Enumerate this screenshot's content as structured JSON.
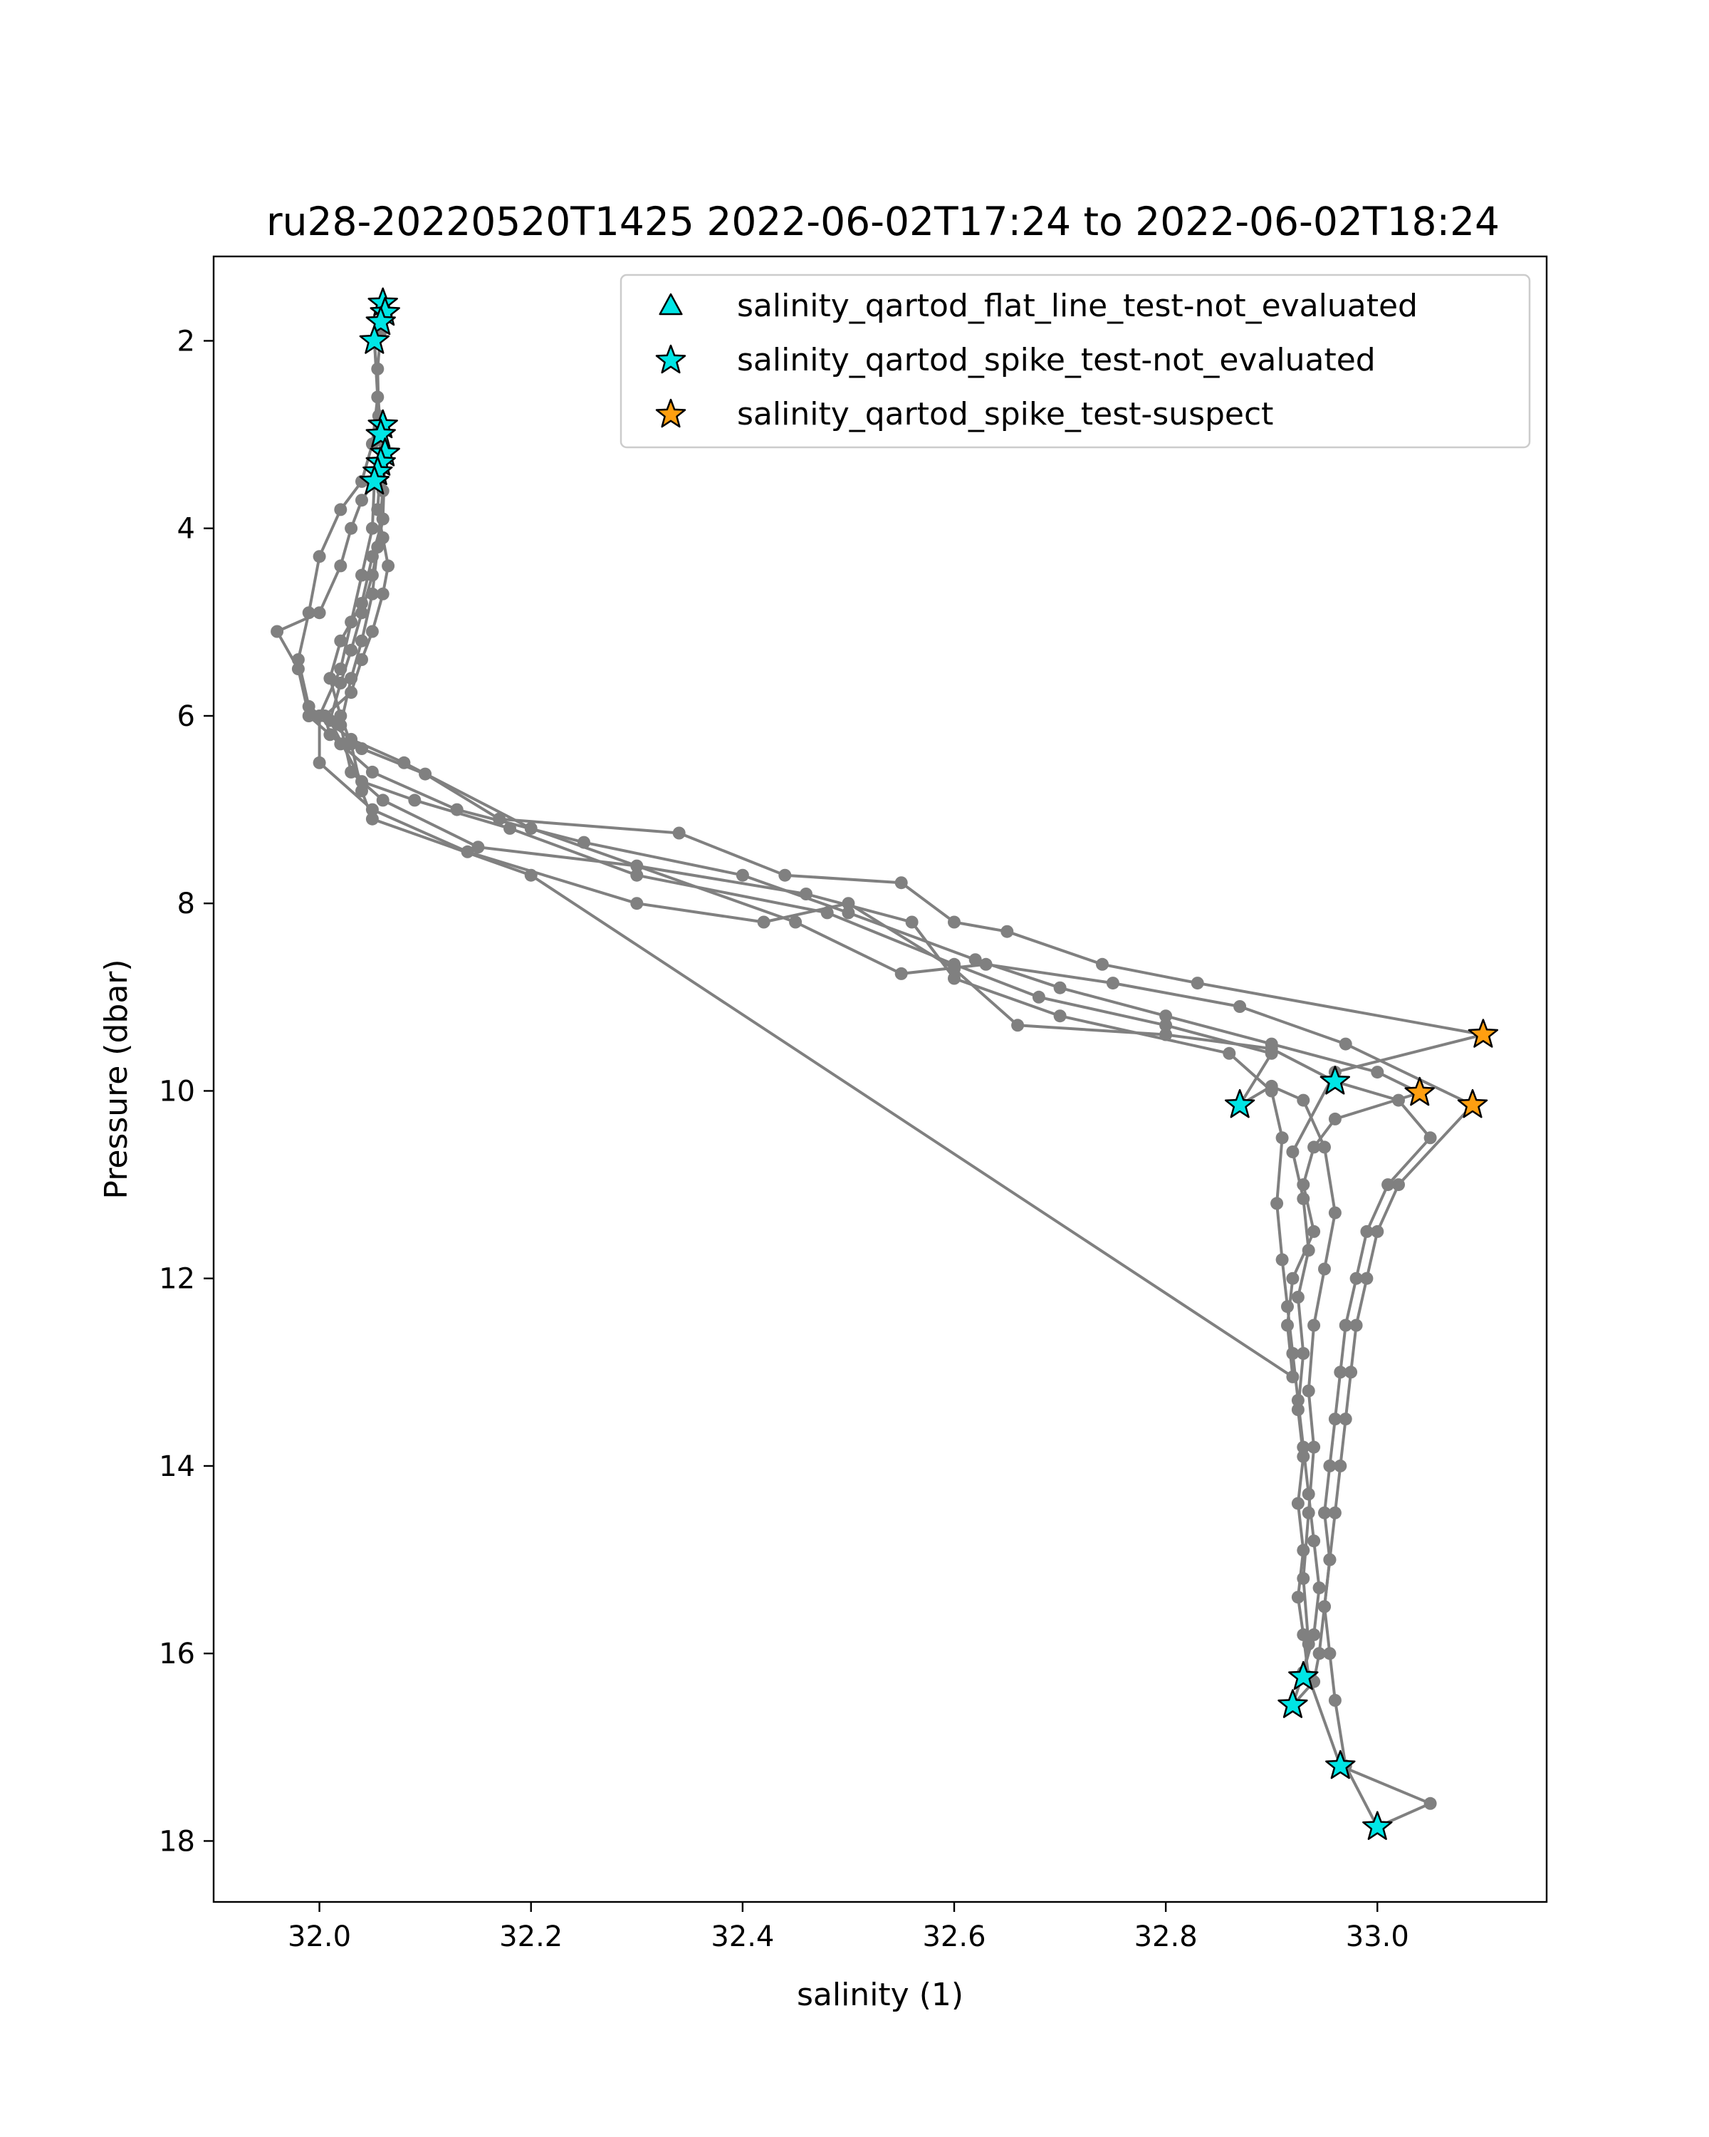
{
  "chart_data": {
    "type": "scatter",
    "title": "ru28-20220520T1425 2022-06-02T17:24 to 2022-06-02T18:24",
    "xlabel": "salinity (1)",
    "ylabel": "Pressure (dbar)",
    "xlim": [
      31.9,
      33.16
    ],
    "ylim": [
      18.65,
      1.1
    ],
    "y_inverted": true,
    "grid": false,
    "xticks": [
      "32.0",
      "32.2",
      "32.4",
      "32.6",
      "32.8",
      "33.0"
    ],
    "yticks": [
      "2",
      "4",
      "6",
      "8",
      "10",
      "12",
      "14",
      "16",
      "18"
    ],
    "legend_position": "upper right",
    "colors": {
      "line": "#808080",
      "not_evaluated": "#00e5e5",
      "suspect": "#ff9f10"
    },
    "series": [
      {
        "name": "",
        "marker": "circle",
        "color": "#808080",
        "profiles": [
          [
            [
              32.06,
              1.6
            ],
            [
              32.058,
              1.9
            ],
            [
              32.055,
              2.3
            ],
            [
              32.056,
              2.8
            ],
            [
              32.058,
              3.3
            ],
            [
              32.055,
              3.8
            ],
            [
              32.06,
              4.1
            ],
            [
              32.065,
              4.4
            ],
            [
              32.06,
              4.7
            ],
            [
              32.05,
              5.1
            ],
            [
              32.04,
              5.4
            ],
            [
              32.03,
              5.75
            ],
            [
              32.005,
              6.0
            ],
            [
              32.01,
              6.2
            ],
            [
              32.04,
              6.35
            ],
            [
              32.1,
              6.62
            ],
            [
              32.17,
              7.1
            ],
            [
              32.34,
              7.25
            ],
            [
              32.44,
              7.7
            ],
            [
              32.55,
              7.78
            ],
            [
              32.6,
              8.2
            ],
            [
              32.65,
              8.3
            ],
            [
              32.74,
              8.65
            ],
            [
              32.83,
              8.85
            ],
            [
              33.1,
              9.4
            ]
          ],
          [
            [
              33.1,
              9.4
            ],
            [
              32.96,
              9.8
            ],
            [
              32.92,
              10.65
            ],
            [
              32.93,
              11.15
            ],
            [
              32.935,
              11.7
            ],
            [
              32.925,
              12.2
            ],
            [
              32.93,
              12.8
            ],
            [
              32.925,
              13.4
            ],
            [
              32.93,
              13.9
            ],
            [
              32.925,
              14.4
            ],
            [
              32.93,
              14.9
            ],
            [
              32.925,
              15.4
            ],
            [
              32.93,
              15.8
            ],
            [
              32.935,
              16.25
            ],
            [
              32.965,
              17.2
            ],
            [
              33.05,
              17.6
            ],
            [
              33.0,
              17.85
            ]
          ],
          [
            [
              33.0,
              17.85
            ],
            [
              32.97,
              17.2
            ],
            [
              32.96,
              16.5
            ],
            [
              32.955,
              16.0
            ],
            [
              32.95,
              15.5
            ],
            [
              32.955,
              15.0
            ],
            [
              32.95,
              14.5
            ],
            [
              32.955,
              14.0
            ],
            [
              32.96,
              13.5
            ],
            [
              32.965,
              13.0
            ],
            [
              32.97,
              12.5
            ],
            [
              32.98,
              12.0
            ],
            [
              32.99,
              11.5
            ],
            [
              33.01,
              11.0
            ],
            [
              33.05,
              10.5
            ],
            [
              33.02,
              10.1
            ],
            [
              32.96,
              9.9
            ]
          ],
          [
            [
              32.96,
              9.9
            ],
            [
              32.9,
              9.55
            ],
            [
              32.8,
              9.4
            ],
            [
              32.66,
              9.3
            ],
            [
              32.6,
              8.7
            ],
            [
              32.5,
              8.0
            ],
            [
              32.42,
              8.2
            ],
            [
              32.3,
              8.0
            ],
            [
              32.14,
              7.45
            ],
            [
              32.05,
              7.0
            ],
            [
              32.0,
              6.5
            ],
            [
              32.0,
              6.0
            ],
            [
              32.02,
              5.5
            ],
            [
              32.03,
              5.0
            ],
            [
              32.04,
              4.5
            ],
            [
              32.05,
              4.0
            ],
            [
              32.052,
              3.5
            ]
          ],
          [
            [
              32.052,
              3.5
            ],
            [
              32.04,
              3.7
            ],
            [
              32.03,
              4.0
            ],
            [
              32.02,
              4.4
            ],
            [
              32.0,
              4.9
            ],
            [
              31.96,
              5.1
            ],
            [
              31.98,
              5.5
            ],
            [
              31.99,
              6.0
            ],
            [
              32.02,
              6.3
            ],
            [
              32.05,
              6.6
            ],
            [
              32.13,
              7.0
            ],
            [
              32.25,
              7.35
            ],
            [
              32.4,
              7.7
            ],
            [
              32.5,
              8.1
            ],
            [
              32.62,
              8.6
            ],
            [
              32.7,
              8.9
            ],
            [
              32.8,
              9.2
            ],
            [
              32.9,
              9.5
            ],
            [
              33.0,
              9.8
            ],
            [
              33.04,
              10.02
            ]
          ],
          [
            [
              33.04,
              10.02
            ],
            [
              32.96,
              10.3
            ],
            [
              32.94,
              10.6
            ],
            [
              32.93,
              11.0
            ],
            [
              32.94,
              11.5
            ],
            [
              32.92,
              12.0
            ],
            [
              32.915,
              12.5
            ],
            [
              32.92,
              13.05
            ],
            [
              32.2,
              7.7
            ],
            [
              32.05,
              7.1
            ],
            [
              32.04,
              6.8
            ],
            [
              32.03,
              6.3
            ],
            [
              32.02,
              6.0
            ],
            [
              32.01,
              5.6
            ],
            [
              32.02,
              5.2
            ],
            [
              32.04,
              4.8
            ],
            [
              32.05,
              4.3
            ],
            [
              32.06,
              3.9
            ],
            [
              32.058,
              3.0
            ],
            [
              32.052,
              2.0
            ]
          ],
          [
            [
              32.052,
              2.0
            ],
            [
              32.055,
              2.6
            ],
            [
              32.05,
              3.1
            ],
            [
              32.04,
              3.5
            ],
            [
              32.02,
              3.8
            ],
            [
              32.0,
              4.3
            ],
            [
              31.99,
              4.9
            ],
            [
              31.98,
              5.4
            ],
            [
              31.99,
              5.9
            ],
            [
              32.03,
              6.25
            ],
            [
              32.08,
              6.5
            ],
            [
              32.2,
              7.2
            ],
            [
              32.45,
              8.2
            ],
            [
              32.55,
              8.75
            ],
            [
              32.63,
              8.65
            ],
            [
              32.75,
              8.85
            ],
            [
              32.87,
              9.1
            ],
            [
              32.97,
              9.5
            ],
            [
              33.09,
              10.15
            ]
          ],
          [
            [
              33.09,
              10.15
            ],
            [
              33.02,
              11.0
            ],
            [
              33.0,
              11.5
            ],
            [
              32.99,
              12.0
            ],
            [
              32.98,
              12.5
            ],
            [
              32.975,
              13.0
            ],
            [
              32.97,
              13.5
            ],
            [
              32.965,
              14.0
            ],
            [
              32.96,
              14.5
            ],
            [
              32.955,
              15.0
            ],
            [
              32.95,
              15.5
            ],
            [
              32.945,
              16.0
            ],
            [
              32.94,
              16.3
            ],
            [
              32.92,
              16.55
            ]
          ],
          [
            [
              32.92,
              16.55
            ],
            [
              32.93,
              16.2
            ],
            [
              32.94,
              15.8
            ],
            [
              32.945,
              15.3
            ],
            [
              32.94,
              14.8
            ],
            [
              32.935,
              14.3
            ],
            [
              32.93,
              13.8
            ],
            [
              32.925,
              13.3
            ],
            [
              32.92,
              12.8
            ],
            [
              32.915,
              12.3
            ],
            [
              32.91,
              11.8
            ],
            [
              32.905,
              11.2
            ],
            [
              32.91,
              10.5
            ],
            [
              32.9,
              10.0
            ],
            [
              32.86,
              9.6
            ],
            [
              32.7,
              9.2
            ],
            [
              32.6,
              8.8
            ],
            [
              32.56,
              8.2
            ],
            [
              32.46,
              7.9
            ],
            [
              32.3,
              7.6
            ],
            [
              32.15,
              7.4
            ],
            [
              32.06,
              6.9
            ],
            [
              32.03,
              6.6
            ],
            [
              32.02,
              6.1
            ],
            [
              32.03,
              5.6
            ],
            [
              32.04,
              5.2
            ],
            [
              32.05,
              4.7
            ],
            [
              32.055,
              4.2
            ],
            [
              32.06,
              3.6
            ],
            [
              32.062,
              3.2
            ]
          ],
          [
            [
              32.062,
              3.2
            ],
            [
              32.06,
              3.9
            ],
            [
              32.05,
              4.5
            ],
            [
              32.04,
              4.9
            ],
            [
              32.03,
              5.3
            ],
            [
              32.02,
              5.65
            ],
            [
              32.01,
              6.05
            ],
            [
              32.04,
              6.7
            ],
            [
              32.09,
              6.9
            ],
            [
              32.18,
              7.2
            ],
            [
              32.3,
              7.7
            ],
            [
              32.48,
              8.1
            ],
            [
              32.6,
              8.65
            ],
            [
              32.68,
              9.0
            ],
            [
              32.8,
              9.3
            ],
            [
              32.9,
              9.6
            ],
            [
              32.87,
              10.15
            ]
          ],
          [
            [
              32.87,
              10.15
            ],
            [
              32.9,
              9.95
            ],
            [
              32.93,
              10.1
            ],
            [
              32.95,
              10.6
            ],
            [
              32.96,
              11.3
            ],
            [
              32.95,
              11.9
            ],
            [
              32.94,
              12.5
            ],
            [
              32.935,
              13.2
            ],
            [
              32.94,
              13.8
            ],
            [
              32.935,
              14.5
            ],
            [
              32.93,
              15.2
            ],
            [
              32.935,
              15.9
            ],
            [
              32.93,
              16.25
            ]
          ]
        ]
      },
      {
        "name": "salinity_qartod_flat_line_test-not_evaluated",
        "marker": "triangle",
        "color": "#00e5e5",
        "points": []
      },
      {
        "name": "salinity_qartod_spike_test-not_evaluated",
        "marker": "star",
        "color": "#00e5e5",
        "points": [
          [
            32.06,
            1.6
          ],
          [
            32.062,
            1.7
          ],
          [
            32.058,
            1.8
          ],
          [
            32.052,
            2.0
          ],
          [
            32.06,
            2.9
          ],
          [
            32.058,
            3.0
          ],
          [
            32.062,
            3.2
          ],
          [
            32.058,
            3.3
          ],
          [
            32.055,
            3.4
          ],
          [
            32.052,
            3.5
          ],
          [
            32.96,
            9.9
          ],
          [
            32.87,
            10.15
          ],
          [
            32.93,
            16.25
          ],
          [
            32.92,
            16.55
          ],
          [
            32.965,
            17.2
          ],
          [
            33.0,
            17.85
          ]
        ]
      },
      {
        "name": "salinity_qartod_spike_test-suspect",
        "marker": "star",
        "color": "#ff9f10",
        "points": [
          [
            33.1,
            9.4
          ],
          [
            33.04,
            10.02
          ],
          [
            33.09,
            10.15
          ]
        ]
      }
    ]
  }
}
